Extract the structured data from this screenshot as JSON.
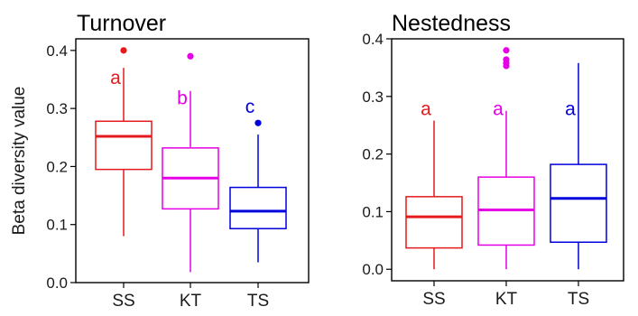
{
  "y_axis_label": "Beta diversity value",
  "chart_data": [
    {
      "type": "box",
      "title": "Turnover",
      "ylabel": "Beta diversity value",
      "xlabel": "",
      "categories": [
        "SS",
        "KT",
        "TS"
      ],
      "ylim": [
        0.0,
        0.42
      ],
      "yticks": [
        "0.0",
        "0.1",
        "0.2",
        "0.3",
        "0.4"
      ],
      "grid": false,
      "legend": "none",
      "boxes": [
        {
          "category": "SS",
          "color": "#e41a1c",
          "whisker_low": 0.08,
          "q1": 0.195,
          "median": 0.252,
          "q3": 0.278,
          "whisker_high": 0.37,
          "outliers": [
            0.4
          ],
          "letter": "a",
          "letter_y": 0.355
        },
        {
          "category": "KT",
          "color": "#e600e6",
          "whisker_low": 0.018,
          "q1": 0.127,
          "median": 0.18,
          "q3": 0.232,
          "whisker_high": 0.33,
          "outliers": [
            0.39
          ],
          "letter": "b",
          "letter_y": 0.32
        },
        {
          "category": "TS",
          "color": "#0000dd",
          "whisker_low": 0.035,
          "q1": 0.093,
          "median": 0.123,
          "q3": 0.164,
          "whisker_high": 0.255,
          "outliers": [
            0.275
          ],
          "letter": "c",
          "letter_y": 0.305
        }
      ]
    },
    {
      "type": "box",
      "title": "Nestedness",
      "ylabel": "",
      "xlabel": "",
      "categories": [
        "SS",
        "KT",
        "TS"
      ],
      "ylim": [
        -0.02,
        0.4
      ],
      "yticks": [
        "0.0",
        "0.1",
        "0.2",
        "0.3",
        "0.4"
      ],
      "grid": false,
      "legend": "none",
      "boxes": [
        {
          "category": "SS",
          "color": "#e41a1c",
          "whisker_low": 0.0,
          "q1": 0.037,
          "median": 0.091,
          "q3": 0.126,
          "whisker_high": 0.258,
          "outliers": [],
          "letter": "a",
          "letter_y": 0.28
        },
        {
          "category": "KT",
          "color": "#e600e6",
          "whisker_low": 0.0,
          "q1": 0.042,
          "median": 0.103,
          "q3": 0.16,
          "whisker_high": 0.275,
          "outliers": [
            0.353,
            0.358,
            0.364,
            0.38
          ],
          "letter": "a",
          "letter_y": 0.28
        },
        {
          "category": "TS",
          "color": "#0000dd",
          "whisker_low": 0.0,
          "q1": 0.047,
          "median": 0.123,
          "q3": 0.182,
          "whisker_high": 0.358,
          "outliers": [],
          "letter": "a",
          "letter_y": 0.28
        }
      ]
    }
  ]
}
